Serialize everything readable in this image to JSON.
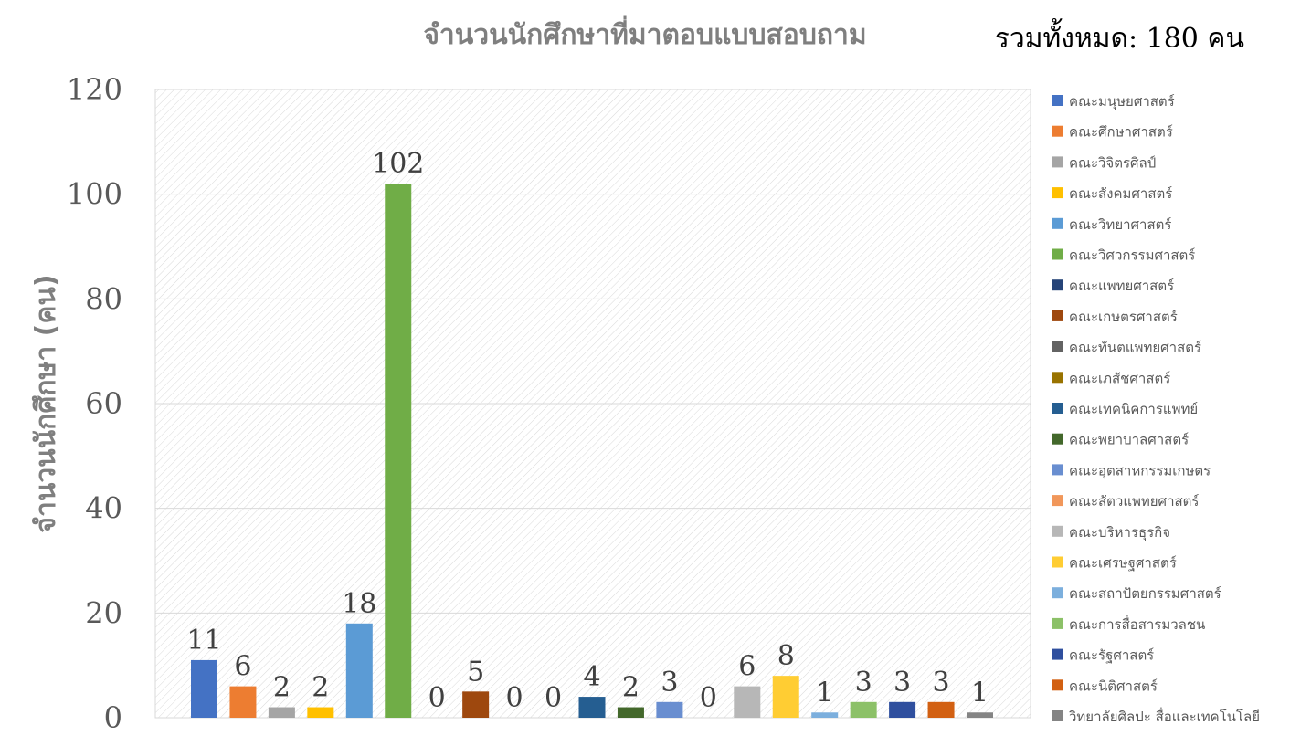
{
  "chart_data": {
    "type": "bar",
    "title": "จำนวนนักศึกษาที่มาตอบแบบสอบถาม",
    "total_label": "รวมทั้งหมด: 180 คน",
    "ylabel": "จำนวนนักศึกษา (คน)",
    "xlabel": "",
    "ylim": [
      0,
      120
    ],
    "yticks": [
      0,
      20,
      40,
      60,
      80,
      100,
      120
    ],
    "grid": true,
    "legend_position": "right",
    "series": [
      {
        "name": "คณะมนุษยศาสตร์",
        "value": 11,
        "color": "#4472c4"
      },
      {
        "name": "คณะศึกษาศาสตร์",
        "value": 6,
        "color": "#ed7d31"
      },
      {
        "name": "คณะวิจิตรศิลป์",
        "value": 2,
        "color": "#a5a5a5"
      },
      {
        "name": "คณะสังคมศาสตร์",
        "value": 2,
        "color": "#ffc000"
      },
      {
        "name": "คณะวิทยาศาสตร์",
        "value": 18,
        "color": "#5b9bd5"
      },
      {
        "name": "คณะวิศวกรรมศาสตร์",
        "value": 102,
        "color": "#70ad47"
      },
      {
        "name": "คณะแพทยศาสตร์",
        "value": 0,
        "color": "#264478"
      },
      {
        "name": "คณะเกษตรศาสตร์",
        "value": 5,
        "color": "#9e480e"
      },
      {
        "name": "คณะทันตแพทยศาสตร์",
        "value": 0,
        "color": "#636363"
      },
      {
        "name": "คณะเภสัชศาสตร์",
        "value": 0,
        "color": "#997300"
      },
      {
        "name": "คณะเทคนิคการแพทย์",
        "value": 4,
        "color": "#255e91"
      },
      {
        "name": "คณะพยาบาลศาสตร์",
        "value": 2,
        "color": "#43682b"
      },
      {
        "name": "คณะอุตสาหกรรมเกษตร",
        "value": 3,
        "color": "#698ed0"
      },
      {
        "name": "คณะสัตวแพทยศาสตร์",
        "value": 0,
        "color": "#f1975a"
      },
      {
        "name": "คณะบริหารธุรกิจ",
        "value": 6,
        "color": "#b7b7b7"
      },
      {
        "name": "คณะเศรษฐศาสตร์",
        "value": 8,
        "color": "#ffcd33"
      },
      {
        "name": "คณะสถาปัตยกรรมศาสตร์",
        "value": 1,
        "color": "#7cafdd"
      },
      {
        "name": "คณะการสื่อสารมวลชน",
        "value": 3,
        "color": "#8cc168"
      },
      {
        "name": "คณะรัฐศาสตร์",
        "value": 3,
        "color": "#2f4f9e"
      },
      {
        "name": "คณะนิติศาสตร์",
        "value": 3,
        "color": "#d26012"
      },
      {
        "name": "วิทยาลัยศิลปะ สื่อและเทคโนโลยี",
        "value": 1,
        "color": "#848484"
      }
    ]
  }
}
